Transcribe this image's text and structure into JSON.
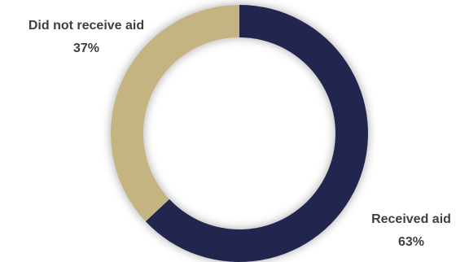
{
  "chart_data": {
    "type": "pie",
    "donut": true,
    "slices": [
      {
        "name": "Received aid",
        "value": 63,
        "value_label": "63%",
        "color": "#242650"
      },
      {
        "name": "Did not receive aid",
        "value": 37,
        "value_label": "37%",
        "color": "#C4B482"
      }
    ],
    "title": "",
    "legend": "none",
    "start_angle_deg": 0,
    "direction": "clockwise"
  }
}
